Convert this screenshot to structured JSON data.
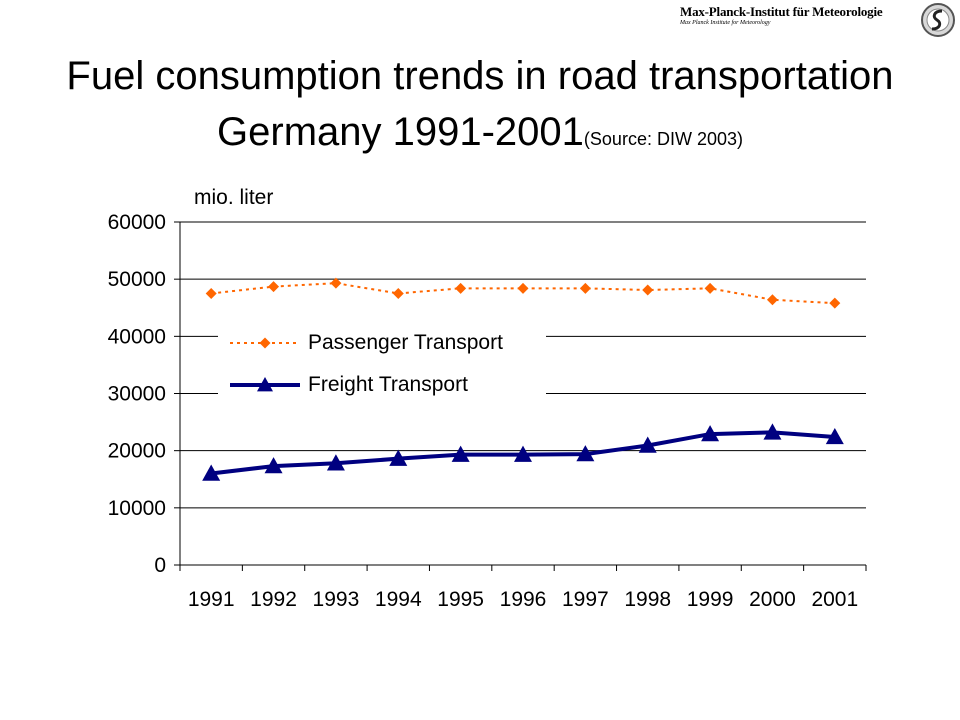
{
  "logo": {
    "name": "Max-Planck-Institut für Meteorologie",
    "subname": "Max Planck Institute for Meteorology"
  },
  "title": {
    "line1": "Fuel consumption trends in road transportation",
    "line2": "Germany 1991-2001",
    "source": "(Source: DIW 2003)"
  },
  "chart_data": {
    "type": "line",
    "title": "Fuel consumption trends in road transportation Germany 1991-2001",
    "ylabel": "mio. liter",
    "xlabel": "",
    "categories": [
      "1991",
      "1992",
      "1993",
      "1994",
      "1995",
      "1996",
      "1997",
      "1998",
      "1999",
      "2000",
      "2001"
    ],
    "ylim": [
      0,
      60000
    ],
    "yticks": [
      0,
      10000,
      20000,
      30000,
      40000,
      50000,
      60000
    ],
    "grid": "horizontal",
    "legend_position": "upper-left inside plot",
    "series": [
      {
        "name": "Passenger Transport",
        "color": "#ff6600",
        "style": "dotted",
        "marker": "diamond",
        "values": [
          47500,
          48700,
          49300,
          47500,
          48400,
          48400,
          48400,
          48100,
          48400,
          46400,
          45800
        ]
      },
      {
        "name": "Freight Transport",
        "color": "#000080",
        "style": "solid",
        "marker": "triangle",
        "values": [
          16000,
          17300,
          17800,
          18600,
          19300,
          19300,
          19400,
          20900,
          22900,
          23200,
          22400
        ]
      }
    ]
  }
}
